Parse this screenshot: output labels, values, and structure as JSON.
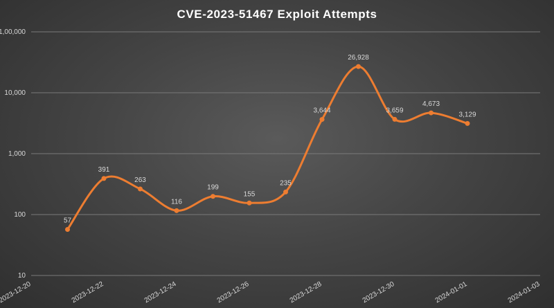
{
  "chart_data": {
    "type": "line",
    "title": "CVE-2023-51467 Exploit Attempts",
    "y_scale": "log10",
    "ylim": [
      10,
      100000
    ],
    "y_ticks": [
      10,
      100,
      1000,
      10000,
      100000
    ],
    "y_tick_labels": [
      "10",
      "100",
      "1,000",
      "10,000",
      "1,00,000"
    ],
    "xlim": [
      "2023-12-20",
      "2024-01-03"
    ],
    "x_ticks": [
      "2023-12-20",
      "2023-12-22",
      "2023-12-24",
      "2023-12-26",
      "2023-12-28",
      "2023-12-30",
      "2024-01-01",
      "2024-01-03"
    ],
    "grid": "horizontal",
    "series": [
      {
        "color": "#ED7D31",
        "x": [
          "2023-12-21",
          "2023-12-22",
          "2023-12-23",
          "2023-12-24",
          "2023-12-25",
          "2023-12-26",
          "2023-12-27",
          "2023-12-28",
          "2023-12-29",
          "2023-12-30",
          "2023-12-31",
          "2024-01-01"
        ],
        "values": [
          57,
          391,
          263,
          116,
          199,
          155,
          235,
          3644,
          26928,
          3659,
          4673,
          3129
        ],
        "data_labels": [
          "57",
          "391",
          "263",
          "116",
          "199",
          "155",
          "235",
          "3,644",
          "26,928",
          "3,659",
          "4,673",
          "3,129"
        ]
      }
    ]
  }
}
